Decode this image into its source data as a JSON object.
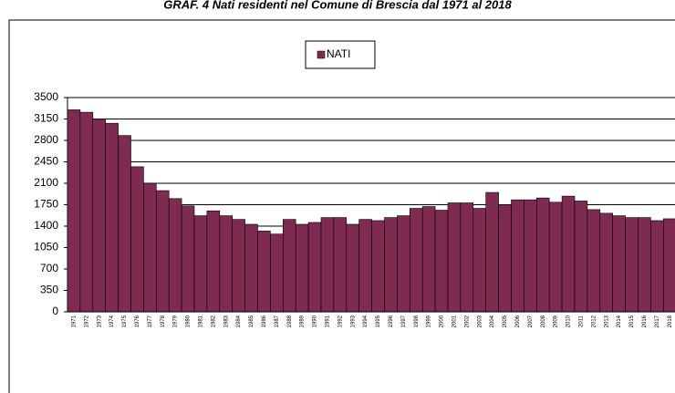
{
  "chart_data": {
    "type": "bar",
    "title": "GRAF. 4 Nati residenti nel Comune di Brescia dal 1971 al 2018",
    "categories": [
      "1971",
      "1972",
      "1973",
      "1974",
      "1975",
      "1976",
      "1977",
      "1978",
      "1979",
      "1980",
      "1981",
      "1982",
      "1983",
      "1984",
      "1985",
      "1986",
      "1987",
      "1988",
      "1989",
      "1990",
      "1991",
      "1992",
      "1993",
      "1994",
      "1995",
      "1996",
      "1997",
      "1998",
      "1999",
      "2000",
      "2001",
      "2002",
      "2003",
      "2004",
      "2005",
      "2006",
      "2007",
      "2008",
      "2009",
      "2010",
      "2011",
      "2012",
      "2013",
      "2014",
      "2015",
      "2016",
      "2017",
      "2018"
    ],
    "series": [
      {
        "name": "NATI",
        "color": "#7f2a50",
        "values": [
          3300,
          3260,
          3150,
          3080,
          2880,
          2370,
          2100,
          1980,
          1850,
          1730,
          1570,
          1650,
          1570,
          1510,
          1430,
          1320,
          1270,
          1510,
          1430,
          1460,
          1540,
          1540,
          1430,
          1510,
          1490,
          1540,
          1570,
          1690,
          1720,
          1660,
          1780,
          1780,
          1690,
          1950,
          1750,
          1830,
          1830,
          1860,
          1790,
          1890,
          1810,
          1670,
          1610,
          1570,
          1540,
          1540,
          1490,
          1520
        ]
      }
    ],
    "ylim": [
      0,
      3500
    ],
    "yticks": [
      0,
      350,
      700,
      1050,
      1400,
      1750,
      2100,
      2450,
      2800,
      3150,
      3500
    ],
    "grid": true,
    "legend": "top"
  }
}
